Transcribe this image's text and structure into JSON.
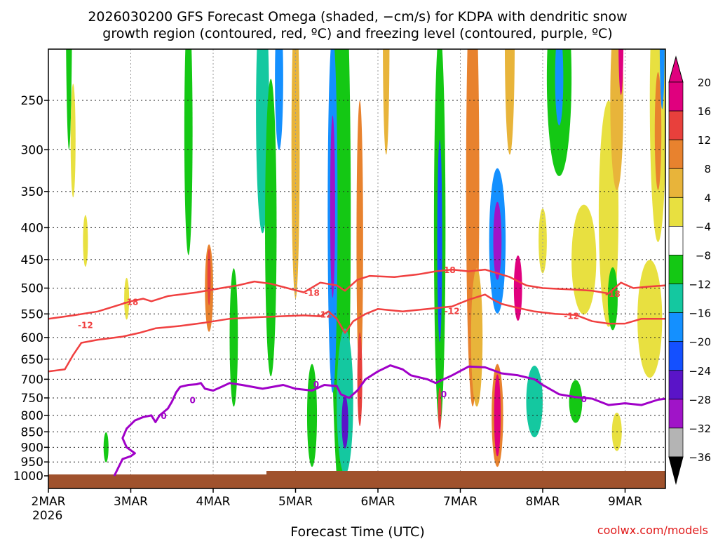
{
  "chart_data": {
    "type": "heatmap",
    "title_line1": "2026030200 GFS Forecast Omega (shaded, −cm/s) for KDPA with dendritic snow",
    "title_line2": "growth region (contoured, red, ºC) and freezing level (contoured, purple, ºC)",
    "xlabel": "Forecast Time (UTC)",
    "watermark": "coolwx.com/models",
    "x_ticks": [
      {
        "label": "2MAR",
        "day": 0
      },
      {
        "label": "3MAR",
        "day": 1
      },
      {
        "label": "4MAR",
        "day": 2
      },
      {
        "label": "5MAR",
        "day": 3
      },
      {
        "label": "6MAR",
        "day": 4
      },
      {
        "label": "7MAR",
        "day": 5
      },
      {
        "label": "8MAR",
        "day": 6
      },
      {
        "label": "9MAR",
        "day": 7
      }
    ],
    "year_label": "2026",
    "xlim": [
      0,
      7.5
    ],
    "y_ticks": [
      250,
      300,
      350,
      400,
      450,
      500,
      550,
      600,
      650,
      700,
      750,
      800,
      850,
      900,
      950,
      1000
    ],
    "ylim_hpa": [
      200,
      1012
    ],
    "colorbar": {
      "labels": [
        "20",
        "16",
        "12",
        "8",
        "4",
        "−4",
        "−8",
        "−12",
        "−16",
        "−20",
        "−24",
        "−28",
        "−32",
        "−36"
      ],
      "colors": [
        "#e0007e",
        "#e8403c",
        "#e8822e",
        "#e8b43a",
        "#e8e040",
        "#ffffff",
        "#14c814",
        "#14c8a0",
        "#1490ff",
        "#1450ff",
        "#5a14c8",
        "#a014c8",
        "#b4b4b4"
      ],
      "arrow_top": "#e0007e",
      "arrow_bottom": "#000000"
    },
    "omega_blobs": [
      {
        "t": 0.25,
        "p": 150,
        "dt": 0.04,
        "dp": 90,
        "v": -8
      },
      {
        "t": 0.3,
        "p": 290,
        "dt": 0.03,
        "dp": 60,
        "v": 4
      },
      {
        "t": 0.45,
        "p": 420,
        "dt": 0.03,
        "dp": 40,
        "v": 4
      },
      {
        "t": 0.7,
        "p": 900,
        "dt": 0.03,
        "dp": 50,
        "v": -8
      },
      {
        "t": 0.95,
        "p": 520,
        "dt": 0.03,
        "dp": 40,
        "v": 4
      },
      {
        "t": 1.95,
        "p": 500,
        "dt": 0.05,
        "dp": 80,
        "v": 12
      },
      {
        "t": 1.95,
        "p": 480,
        "dt": 0.02,
        "dp": 50,
        "v": 16
      },
      {
        "t": 1.7,
        "p": 280,
        "dt": 0.05,
        "dp": 120,
        "v": -8
      },
      {
        "t": 2.6,
        "p": 260,
        "dt": 0.08,
        "dp": 110,
        "v": -12
      },
      {
        "t": 2.7,
        "p": 400,
        "dt": 0.07,
        "dp": 200,
        "v": -8
      },
      {
        "t": 2.8,
        "p": 230,
        "dt": 0.05,
        "dp": 60,
        "v": -16
      },
      {
        "t": 2.25,
        "p": 600,
        "dt": 0.05,
        "dp": 150,
        "v": -8
      },
      {
        "t": 3.55,
        "p": 380,
        "dt": 0.12,
        "dp": 300,
        "v": -8
      },
      {
        "t": 3.45,
        "p": 380,
        "dt": 0.06,
        "dp": 220,
        "v": -16
      },
      {
        "t": 3.45,
        "p": 370,
        "dt": 0.03,
        "dp": 120,
        "v": -28
      },
      {
        "t": 3.6,
        "p": 760,
        "dt": 0.1,
        "dp": 200,
        "v": -12
      },
      {
        "t": 3.6,
        "p": 820,
        "dt": 0.04,
        "dp": 80,
        "v": -24
      },
      {
        "t": 3.2,
        "p": 800,
        "dt": 0.06,
        "dp": 150,
        "v": -8
      },
      {
        "t": 3.0,
        "p": 300,
        "dt": 0.05,
        "dp": 150,
        "v": 8
      },
      {
        "t": 3.78,
        "p": 420,
        "dt": 0.04,
        "dp": 200,
        "v": 12
      },
      {
        "t": 3.78,
        "p": 700,
        "dt": 0.03,
        "dp": 120,
        "v": 16
      },
      {
        "t": 4.75,
        "p": 400,
        "dt": 0.07,
        "dp": 250,
        "v": -8
      },
      {
        "t": 4.75,
        "p": 420,
        "dt": 0.03,
        "dp": 150,
        "v": -20
      },
      {
        "t": 4.75,
        "p": 780,
        "dt": 0.02,
        "dp": 60,
        "v": 16
      },
      {
        "t": 4.1,
        "p": 200,
        "dt": 0.04,
        "dp": 80,
        "v": 8
      },
      {
        "t": 5.15,
        "p": 340,
        "dt": 0.08,
        "dp": 230,
        "v": 12
      },
      {
        "t": 5.2,
        "p": 600,
        "dt": 0.07,
        "dp": 150,
        "v": 8
      },
      {
        "t": 5.45,
        "p": 420,
        "dt": 0.1,
        "dp": 110,
        "v": -16
      },
      {
        "t": 5.45,
        "p": 420,
        "dt": 0.05,
        "dp": 60,
        "v": -28
      },
      {
        "t": 5.45,
        "p": 800,
        "dt": 0.07,
        "dp": 150,
        "v": 12
      },
      {
        "t": 5.45,
        "p": 800,
        "dt": 0.04,
        "dp": 120,
        "v": 20
      },
      {
        "t": 5.7,
        "p": 500,
        "dt": 0.05,
        "dp": 60,
        "v": 20
      },
      {
        "t": 5.6,
        "p": 200,
        "dt": 0.06,
        "dp": 80,
        "v": 8
      },
      {
        "t": 5.9,
        "p": 760,
        "dt": 0.1,
        "dp": 100,
        "v": -12
      },
      {
        "t": 6.2,
        "p": 230,
        "dt": 0.15,
        "dp": 80,
        "v": -8
      },
      {
        "t": 6.2,
        "p": 230,
        "dt": 0.05,
        "dp": 40,
        "v": -16
      },
      {
        "t": 6.0,
        "p": 420,
        "dt": 0.05,
        "dp": 50,
        "v": 4
      },
      {
        "t": 6.5,
        "p": 450,
        "dt": 0.15,
        "dp": 90,
        "v": 4
      },
      {
        "t": 6.8,
        "p": 380,
        "dt": 0.12,
        "dp": 150,
        "v": 4
      },
      {
        "t": 6.9,
        "p": 250,
        "dt": 0.08,
        "dp": 80,
        "v": 8
      },
      {
        "t": 6.95,
        "p": 200,
        "dt": 0.03,
        "dp": 40,
        "v": 20
      },
      {
        "t": 7.4,
        "p": 250,
        "dt": 0.1,
        "dp": 120,
        "v": 4
      },
      {
        "t": 7.4,
        "p": 280,
        "dt": 0.04,
        "dp": 60,
        "v": 12
      },
      {
        "t": 7.45,
        "p": 200,
        "dt": 0.03,
        "dp": 50,
        "v": -16
      },
      {
        "t": 6.85,
        "p": 520,
        "dt": 0.06,
        "dp": 60,
        "v": -8
      },
      {
        "t": 7.3,
        "p": 560,
        "dt": 0.15,
        "dp": 120,
        "v": 4
      },
      {
        "t": 6.4,
        "p": 760,
        "dt": 0.08,
        "dp": 60,
        "v": -8
      },
      {
        "t": 6.9,
        "p": 850,
        "dt": 0.06,
        "dp": 60,
        "v": 4
      }
    ],
    "isotherm_m18": {
      "label": "-18",
      "points": [
        [
          0.0,
          560
        ],
        [
          0.3,
          553
        ],
        [
          0.6,
          545
        ],
        [
          0.8,
          535
        ],
        [
          1.0,
          525
        ],
        [
          1.15,
          520
        ],
        [
          1.25,
          525
        ],
        [
          1.45,
          515
        ],
        [
          1.8,
          508
        ],
        [
          2.1,
          500
        ],
        [
          2.3,
          495
        ],
        [
          2.5,
          488
        ],
        [
          2.7,
          492
        ],
        [
          2.9,
          500
        ],
        [
          3.1,
          508
        ],
        [
          3.3,
          490
        ],
        [
          3.5,
          495
        ],
        [
          3.6,
          505
        ],
        [
          3.75,
          485
        ],
        [
          3.9,
          478
        ],
        [
          4.2,
          480
        ],
        [
          4.5,
          475
        ],
        [
          4.7,
          470
        ],
        [
          4.9,
          467
        ],
        [
          5.1,
          470
        ],
        [
          5.3,
          467
        ],
        [
          5.6,
          480
        ],
        [
          5.8,
          495
        ],
        [
          6.0,
          500
        ],
        [
          6.4,
          503
        ],
        [
          6.6,
          505
        ],
        [
          6.8,
          510
        ],
        [
          6.95,
          490
        ],
        [
          7.1,
          500
        ],
        [
          7.3,
          497
        ],
        [
          7.5,
          495
        ]
      ],
      "label_positions": [
        [
          1.0,
          525
        ],
        [
          3.2,
          508
        ],
        [
          4.85,
          467
        ],
        [
          6.85,
          510
        ]
      ]
    },
    "isotherm_m12": {
      "label": "-12",
      "points": [
        [
          0.0,
          680
        ],
        [
          0.2,
          675
        ],
        [
          0.3,
          640
        ],
        [
          0.4,
          612
        ],
        [
          0.6,
          605
        ],
        [
          0.9,
          598
        ],
        [
          1.1,
          590
        ],
        [
          1.3,
          580
        ],
        [
          1.6,
          575
        ],
        [
          1.9,
          568
        ],
        [
          2.2,
          560
        ],
        [
          2.5,
          557
        ],
        [
          2.8,
          555
        ],
        [
          3.1,
          553
        ],
        [
          3.3,
          555
        ],
        [
          3.4,
          545
        ],
        [
          3.5,
          560
        ],
        [
          3.6,
          590
        ],
        [
          3.7,
          565
        ],
        [
          3.85,
          550
        ],
        [
          4.0,
          540
        ],
        [
          4.3,
          545
        ],
        [
          4.6,
          540
        ],
        [
          4.9,
          535
        ],
        [
          5.1,
          522
        ],
        [
          5.3,
          512
        ],
        [
          5.4,
          522
        ],
        [
          5.5,
          530
        ],
        [
          5.7,
          538
        ],
        [
          5.9,
          545
        ],
        [
          6.15,
          550
        ],
        [
          6.4,
          552
        ],
        [
          6.6,
          565
        ],
        [
          6.8,
          570
        ],
        [
          7.0,
          570
        ],
        [
          7.2,
          560
        ],
        [
          7.5,
          560
        ]
      ],
      "label_positions": [
        [
          0.45,
          572
        ],
        [
          3.35,
          550
        ],
        [
          4.9,
          543
        ],
        [
          6.35,
          553
        ]
      ]
    },
    "isotherm_0": {
      "label": "0",
      "points": [
        [
          0.8,
          1000
        ],
        [
          0.9,
          940
        ],
        [
          1.0,
          930
        ],
        [
          1.05,
          920
        ],
        [
          0.95,
          900
        ],
        [
          0.9,
          870
        ],
        [
          0.95,
          840
        ],
        [
          1.05,
          815
        ],
        [
          1.15,
          805
        ],
        [
          1.25,
          800
        ],
        [
          1.3,
          820
        ],
        [
          1.35,
          800
        ],
        [
          1.45,
          780
        ],
        [
          1.5,
          760
        ],
        [
          1.55,
          735
        ],
        [
          1.6,
          720
        ],
        [
          1.7,
          715
        ],
        [
          1.8,
          713
        ],
        [
          1.85,
          710
        ],
        [
          1.9,
          725
        ],
        [
          2.0,
          730
        ],
        [
          2.1,
          720
        ],
        [
          2.2,
          710
        ],
        [
          2.35,
          715
        ],
        [
          2.6,
          725
        ],
        [
          2.85,
          715
        ],
        [
          3.0,
          725
        ],
        [
          3.2,
          730
        ],
        [
          3.35,
          715
        ],
        [
          3.5,
          718
        ],
        [
          3.55,
          740
        ],
        [
          3.65,
          750
        ],
        [
          3.75,
          730
        ],
        [
          3.85,
          700
        ],
        [
          4.0,
          680
        ],
        [
          4.15,
          665
        ],
        [
          4.3,
          675
        ],
        [
          4.4,
          690
        ],
        [
          4.6,
          700
        ],
        [
          4.7,
          710
        ],
        [
          4.9,
          690
        ],
        [
          5.1,
          668
        ],
        [
          5.3,
          670
        ],
        [
          5.5,
          685
        ],
        [
          5.7,
          690
        ],
        [
          5.9,
          700
        ],
        [
          6.0,
          715
        ],
        [
          6.2,
          740
        ],
        [
          6.4,
          748
        ],
        [
          6.6,
          752
        ],
        [
          6.8,
          770
        ],
        [
          7.0,
          765
        ],
        [
          7.2,
          770
        ],
        [
          7.4,
          755
        ],
        [
          7.5,
          752
        ]
      ],
      "label_positions": [
        [
          1.4,
          800
        ],
        [
          1.75,
          755
        ],
        [
          3.25,
          712
        ],
        [
          4.8,
          738
        ],
        [
          6.5,
          752
        ]
      ]
    }
  }
}
